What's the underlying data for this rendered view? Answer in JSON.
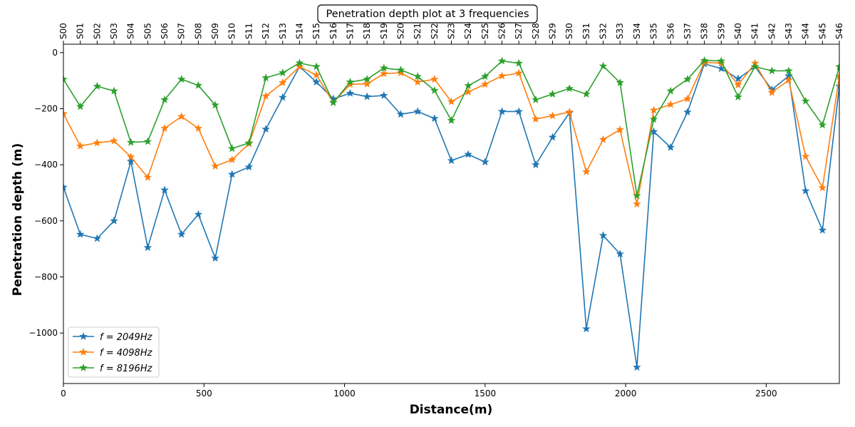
{
  "chart_data": {
    "type": "line",
    "title": "Penetration depth plot at 3 frequencies",
    "xlabel": "Distance(m)",
    "ylabel": "Penetration depth (m)",
    "xlim": [
      0,
      2760
    ],
    "ylim": [
      -1180,
      30
    ],
    "x_ticks": [
      0,
      500,
      1000,
      1500,
      2000,
      2500
    ],
    "y_ticks": [
      0,
      -200,
      -400,
      -600,
      -800,
      -1000
    ],
    "y_tick_labels": [
      "0",
      "−200",
      "−400",
      "−600",
      "−800",
      "−1000"
    ],
    "grid": false,
    "legend": "lower-left",
    "marker": "star",
    "top_labels": [
      "S00",
      "S01",
      "S02",
      "S03",
      "S04",
      "S05",
      "S06",
      "S07",
      "S08",
      "S09",
      "S10",
      "S11",
      "S12",
      "S13",
      "S14",
      "S15",
      "S16",
      "S17",
      "S18",
      "S19",
      "S20",
      "S21",
      "S22",
      "S23",
      "S24",
      "S25",
      "S26",
      "S27",
      "S28",
      "S29",
      "S30",
      "S31",
      "S32",
      "S33",
      "S34",
      "S35",
      "S36",
      "S37",
      "S38",
      "S39",
      "S40",
      "S41",
      "S42",
      "S43",
      "S44",
      "S45",
      "S46"
    ],
    "x": [
      0,
      60,
      120,
      180,
      240,
      300,
      360,
      420,
      480,
      540,
      600,
      660,
      720,
      780,
      840,
      900,
      960,
      1020,
      1080,
      1140,
      1200,
      1260,
      1320,
      1380,
      1440,
      1500,
      1560,
      1620,
      1680,
      1740,
      1800,
      1860,
      1920,
      1980,
      2040,
      2100,
      2160,
      2220,
      2280,
      2340,
      2400,
      2460,
      2520,
      2580,
      2640,
      2700,
      2760
    ],
    "series": [
      {
        "name": "f = 2049Hz",
        "color": "#1f77b4",
        "values": [
          -480,
          -648,
          -663,
          -600,
          -388,
          -695,
          -490,
          -648,
          -577,
          -733,
          -434,
          -408,
          -273,
          -160,
          -50,
          -105,
          -165,
          -145,
          -157,
          -153,
          -220,
          -210,
          -235,
          -385,
          -363,
          -390,
          -210,
          -210,
          -400,
          -302,
          -215,
          -985,
          -652,
          -718,
          -1122,
          -282,
          -338,
          -212,
          -40,
          -57,
          -93,
          -50,
          -132,
          -83,
          -493,
          -633,
          -120
        ]
      },
      {
        "name": "f = 4098Hz",
        "color": "#ff7f0e",
        "values": [
          -218,
          -333,
          -322,
          -315,
          -372,
          -445,
          -270,
          -228,
          -270,
          -405,
          -382,
          -325,
          -155,
          -107,
          -50,
          -80,
          -178,
          -113,
          -112,
          -75,
          -72,
          -105,
          -95,
          -175,
          -140,
          -113,
          -83,
          -73,
          -237,
          -225,
          -212,
          -425,
          -310,
          -275,
          -540,
          -205,
          -185,
          -165,
          -35,
          -38,
          -115,
          -38,
          -142,
          -98,
          -370,
          -482,
          -85
        ]
      },
      {
        "name": "f = 8196Hz",
        "color": "#2ca02c",
        "values": [
          -95,
          -192,
          -120,
          -137,
          -320,
          -317,
          -168,
          -95,
          -117,
          -187,
          -342,
          -322,
          -90,
          -72,
          -37,
          -50,
          -178,
          -105,
          -95,
          -55,
          -62,
          -85,
          -135,
          -242,
          -118,
          -85,
          -30,
          -38,
          -168,
          -148,
          -128,
          -148,
          -48,
          -107,
          -510,
          -238,
          -137,
          -95,
          -28,
          -30,
          -158,
          -50,
          -65,
          -65,
          -173,
          -258,
          -50
        ]
      }
    ]
  }
}
